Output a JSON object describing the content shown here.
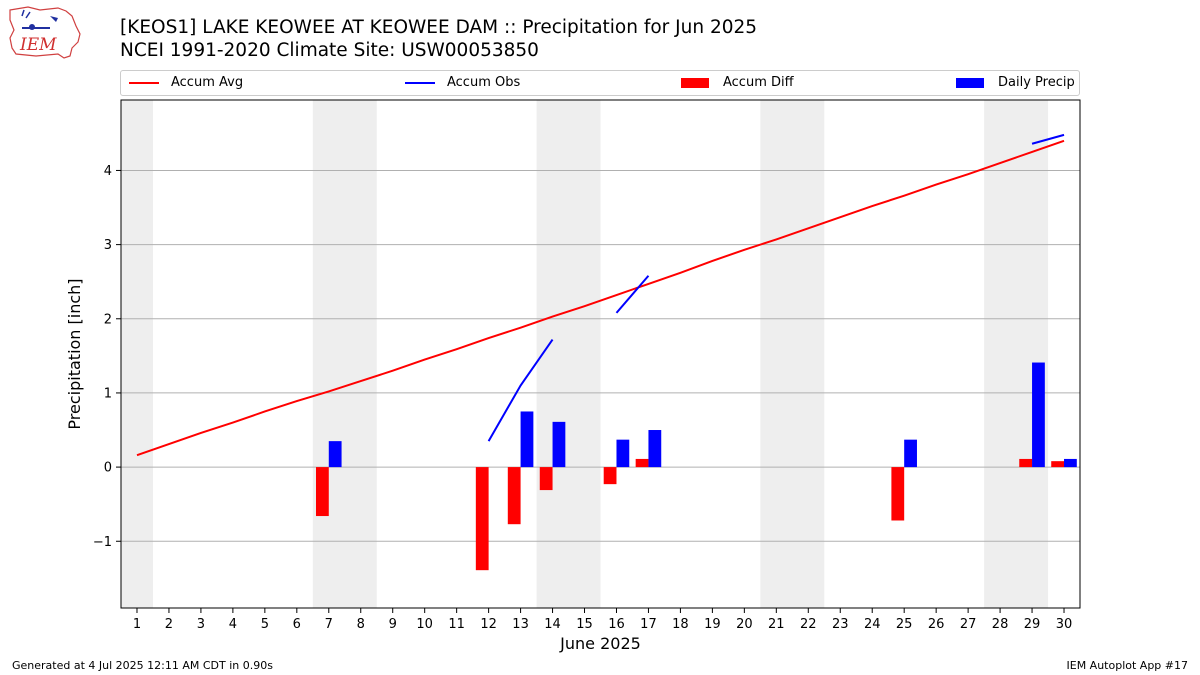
{
  "header": {
    "title": "[KEOS1] LAKE KEOWEE  AT KEOWEE DAM :: Precipitation for Jun 2025",
    "subtitle": "NCEI 1991-2020 Climate Site: USW00053850",
    "logo_text": "IEM"
  },
  "footer": {
    "generated": "Generated at 4 Jul 2025 12:11 AM CDT in 0.90s",
    "app": "IEM Autoplot App #17"
  },
  "colors": {
    "accum_avg": "#ff0000",
    "accum_obs": "#0000ff",
    "accum_diff": "#ff0000",
    "daily_precip": "#0000ff",
    "weekend_shade": "#eeeeee",
    "grid": "#b0b0b0"
  },
  "chart_data": {
    "type": "bar",
    "xlabel": "June 2025",
    "ylabel": "Precipitation [inch]",
    "xlim": [
      0.5,
      30.5
    ],
    "ylim": [
      -1.9,
      4.95
    ],
    "grid": "horizontal",
    "legend_placement": "top",
    "x": [
      1,
      2,
      3,
      4,
      5,
      6,
      7,
      8,
      9,
      10,
      11,
      12,
      13,
      14,
      15,
      16,
      17,
      18,
      19,
      20,
      21,
      22,
      23,
      24,
      25,
      26,
      27,
      28,
      29,
      30
    ],
    "x_tick_labels": [
      "1",
      "2",
      "3",
      "4",
      "5",
      "6",
      "7",
      "8",
      "9",
      "10",
      "11",
      "12",
      "13",
      "14",
      "15",
      "16",
      "17",
      "18",
      "19",
      "20",
      "21",
      "22",
      "23",
      "24",
      "25",
      "26",
      "27",
      "28",
      "29",
      "30"
    ],
    "y_ticks": [
      -1,
      0,
      1,
      2,
      3,
      4
    ],
    "y_tick_labels": [
      "−1",
      "0",
      "1",
      "2",
      "3",
      "4"
    ],
    "shaded_days": [
      [
        0.5,
        1.5
      ],
      [
        6.5,
        8.5
      ],
      [
        13.5,
        15.5
      ],
      [
        20.5,
        22.5
      ],
      [
        27.5,
        29.5
      ]
    ],
    "series": [
      {
        "name": "Accum Avg",
        "type": "line",
        "values": [
          0.16,
          0.31,
          0.46,
          0.6,
          0.75,
          0.89,
          1.02,
          1.16,
          1.3,
          1.45,
          1.59,
          1.74,
          1.88,
          2.03,
          2.17,
          2.32,
          2.47,
          2.62,
          2.78,
          2.93,
          3.07,
          3.22,
          3.37,
          3.52,
          3.66,
          3.81,
          3.95,
          4.1,
          4.25,
          4.4
        ]
      },
      {
        "name": "Accum Obs",
        "type": "line",
        "segments": [
          [
            [
              12,
              0.35
            ],
            [
              13,
              1.1
            ],
            [
              14,
              1.72
            ]
          ],
          [
            [
              16,
              2.08
            ],
            [
              17,
              2.58
            ]
          ],
          [
            [
              29,
              4.36
            ],
            [
              30,
              4.48
            ]
          ]
        ]
      },
      {
        "name": "Accum Diff",
        "type": "bar",
        "values": [
          {
            "x": 7,
            "y": -0.66
          },
          {
            "x": 12,
            "y": -1.39
          },
          {
            "x": 13,
            "y": -0.77
          },
          {
            "x": 14,
            "y": -0.31
          },
          {
            "x": 16,
            "y": -0.23
          },
          {
            "x": 17,
            "y": 0.11
          },
          {
            "x": 25,
            "y": -0.72
          },
          {
            "x": 29,
            "y": 0.11
          },
          {
            "x": 30,
            "y": 0.08
          }
        ]
      },
      {
        "name": "Daily Precip",
        "type": "bar",
        "values": [
          {
            "x": 7,
            "y": 0.35
          },
          {
            "x": 13,
            "y": 0.75
          },
          {
            "x": 14,
            "y": 0.61
          },
          {
            "x": 16,
            "y": 0.37
          },
          {
            "x": 17,
            "y": 0.5
          },
          {
            "x": 25,
            "y": 0.37
          },
          {
            "x": 29,
            "y": 1.41
          },
          {
            "x": 30,
            "y": 0.11
          }
        ]
      }
    ]
  }
}
